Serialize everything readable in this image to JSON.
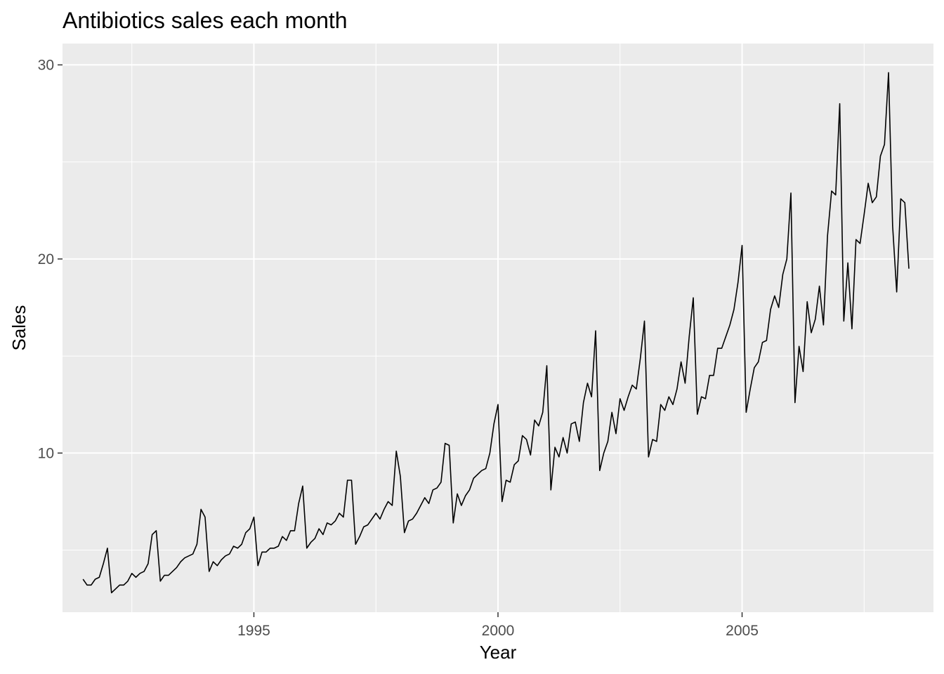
{
  "chart_data": {
    "type": "line",
    "title": "Antibiotics sales each month",
    "xlabel": "Year",
    "ylabel": "Sales",
    "xlim": [
      1991.08,
      2008.92
    ],
    "ylim": [
      1.8,
      31.1
    ],
    "x_ticks": [
      1995,
      2000,
      2005
    ],
    "x_tick_labels": [
      "1995",
      "2000",
      "2005"
    ],
    "y_ticks": [
      10,
      20,
      30
    ],
    "y_tick_labels": [
      "10",
      "20",
      "30"
    ],
    "grid": true,
    "legend": "none",
    "colors": {
      "panel": "#ebebeb",
      "grid": "#ffffff",
      "line": "#000000",
      "tick_label": "#4d4d4d"
    },
    "series": [
      {
        "x_start": 1991.5,
        "x_step_months": 1,
        "values": [
          3.5,
          3.2,
          3.2,
          3.5,
          3.6,
          4.3,
          5.1,
          2.8,
          3.0,
          3.2,
          3.2,
          3.4,
          3.8,
          3.6,
          3.8,
          3.9,
          4.3,
          5.8,
          6.0,
          3.4,
          3.7,
          3.7,
          3.9,
          4.1,
          4.4,
          4.6,
          4.7,
          4.8,
          5.3,
          7.1,
          6.7,
          3.9,
          4.4,
          4.2,
          4.5,
          4.7,
          4.8,
          5.2,
          5.1,
          5.3,
          5.9,
          6.1,
          6.7,
          4.2,
          4.9,
          4.9,
          5.1,
          5.1,
          5.2,
          5.7,
          5.5,
          6.0,
          6.0,
          7.4,
          8.3,
          5.1,
          5.4,
          5.6,
          6.1,
          5.8,
          6.4,
          6.3,
          6.5,
          6.9,
          6.7,
          8.6,
          8.6,
          5.3,
          5.7,
          6.2,
          6.3,
          6.6,
          6.9,
          6.6,
          7.1,
          7.5,
          7.3,
          10.1,
          8.8,
          5.9,
          6.5,
          6.6,
          6.9,
          7.3,
          7.7,
          7.4,
          8.1,
          8.2,
          8.5,
          10.5,
          10.4,
          6.4,
          7.9,
          7.3,
          7.8,
          8.1,
          8.7,
          8.9,
          9.1,
          9.2,
          10.0,
          11.5,
          12.5,
          7.5,
          8.6,
          8.5,
          9.4,
          9.6,
          10.9,
          10.7,
          9.9,
          11.7,
          11.4,
          12.1,
          14.5,
          8.1,
          10.3,
          9.8,
          10.8,
          10.0,
          11.5,
          11.6,
          10.6,
          12.6,
          13.6,
          12.9,
          16.3,
          9.1,
          10.0,
          10.6,
          12.1,
          11.0,
          12.8,
          12.2,
          12.9,
          13.5,
          13.3,
          14.9,
          16.8,
          9.8,
          10.7,
          10.6,
          12.5,
          12.2,
          12.9,
          12.5,
          13.3,
          14.7,
          13.6,
          16.0,
          18.0,
          12.0,
          12.9,
          12.8,
          14.0,
          14.0,
          15.4,
          15.4,
          16.0,
          16.6,
          17.4,
          18.8,
          20.7,
          12.1,
          13.3,
          14.4,
          14.7,
          15.7,
          15.8,
          17.4,
          18.1,
          17.5,
          19.2,
          20.0,
          23.4,
          12.6,
          15.5,
          14.2,
          17.8,
          16.2,
          16.9,
          18.6,
          16.6,
          21.2,
          23.5,
          23.3,
          28.0,
          16.8,
          19.8,
          16.4,
          21.0,
          20.8,
          22.3,
          23.9,
          22.9,
          23.2,
          25.3,
          25.9,
          29.6,
          21.7,
          18.3,
          23.1,
          22.9,
          19.5
        ]
      }
    ]
  }
}
